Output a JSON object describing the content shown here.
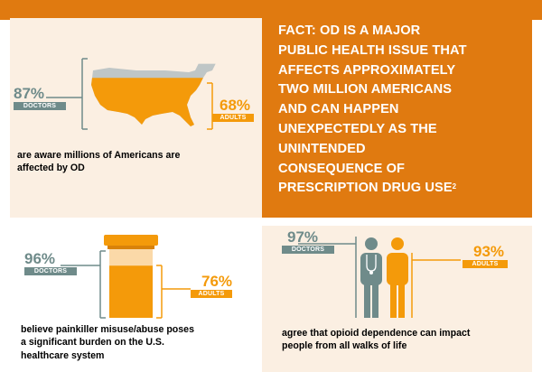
{
  "colors": {
    "orange": "#E07A10",
    "teal": "#6F8B8A",
    "bright_orange": "#F49A0A",
    "cream": "#FBEFE2"
  },
  "panel_us": {
    "doctors_percent": "87%",
    "doctors_label": "DOCTORS",
    "adults_percent": "68%",
    "adults_label": "ADULTS",
    "doctors_value": 87,
    "adults_value": 68,
    "caption_line1": "are aware millions of Americans are",
    "caption_line2": "affected by OD"
  },
  "panel_fact": {
    "lead": "FACT:",
    "line1_rest": " OD IS A MAJOR",
    "line2": "PUBLIC HEALTH ISSUE THAT",
    "line3": "AFFECTS APPROXIMATELY",
    "line4": "TWO MILLION AMERICANS",
    "line5": "AND CAN HAPPEN",
    "line6": "UNEXPECTEDLY AS THE",
    "line7": "UNINTENDED",
    "line8": "CONSEQUENCE OF",
    "line9": "PRESCRIPTION DRUG USE",
    "footnote": "2"
  },
  "panel_bottle": {
    "doctors_percent": "96%",
    "doctors_label": "DOCTORS",
    "adults_percent": "76%",
    "adults_label": "ADULTS",
    "doctors_value": 96,
    "adults_value": 76,
    "caption_line1": "believe painkiller misuse/abuse poses",
    "caption_line2": "a significant burden on the U.S.",
    "caption_line3": "healthcare system"
  },
  "panel_people": {
    "doctors_percent": "97%",
    "doctors_label": "DOCTORS",
    "adults_percent": "93%",
    "adults_label": "ADULTS",
    "doctors_value": 97,
    "adults_value": 93,
    "caption_line1": "agree that opioid dependence can impact",
    "caption_line2": "people from all walks of life"
  }
}
